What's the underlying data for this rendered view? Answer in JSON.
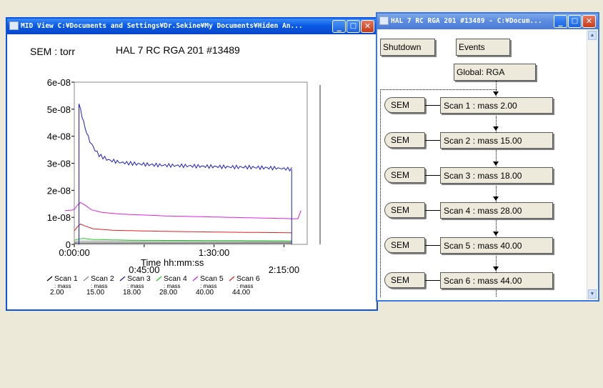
{
  "mid_window": {
    "title": "MID View  C:¥Documents and Settings¥Dr.Sekine¥My Documents¥Hiden An...",
    "controls": {
      "minimize": "_",
      "maximize": "□",
      "close": "✕"
    }
  },
  "flow_window": {
    "title": "HAL 7 RC RGA 201 #13489 - C:¥Docum...",
    "shutdown_label": "Shutdown",
    "events_label": "Events",
    "global_label": "Global: RGA",
    "sem_label": "SEM",
    "scans": [
      "Scan 1 : mass 2.00",
      "Scan 2 : mass 15.00",
      "Scan 3 : mass 18.00",
      "Scan 4 : mass 28.00",
      "Scan 5 : mass 40.00",
      "Scan 6 : mass 44.00"
    ]
  },
  "chart_data": {
    "type": "line",
    "unit_label": "SEM : torr",
    "title": "HAL 7 RC RGA 201 #13489",
    "xlabel": "Time  hh:mm:ss",
    "x_unit": "minutes",
    "xlim": [
      0,
      150
    ],
    "ylim": [
      0,
      6e-08
    ],
    "yticks": [
      {
        "value": 0,
        "label": "0"
      },
      {
        "value": 1e-08,
        "label": "1e-08"
      },
      {
        "value": 2e-08,
        "label": "2e-08"
      },
      {
        "value": 3e-08,
        "label": "3e-08"
      },
      {
        "value": 4e-08,
        "label": "4e-08"
      },
      {
        "value": 5e-08,
        "label": "5e-08"
      },
      {
        "value": 6e-08,
        "label": "6e-08"
      }
    ],
    "xticks": [
      {
        "value": 0,
        "label": "0:00:00",
        "row": 0
      },
      {
        "value": 45,
        "label": "0:45:00",
        "row": 1
      },
      {
        "value": 90,
        "label": "1:30:00",
        "row": 0
      },
      {
        "value": 135,
        "label": "2:15:00",
        "row": 1
      }
    ],
    "series": [
      {
        "name": "Scan 1",
        "mass_label": ": mass",
        "mass": "2.00",
        "color": "#000000",
        "points": [
          [
            0,
            5e-10
          ],
          [
            3,
            5e-10
          ],
          [
            140,
            5e-10
          ]
        ]
      },
      {
        "name": "Scan 2",
        "mass_label": ": mass",
        "mass": "15.00",
        "color": "#888888",
        "points": [
          [
            0,
            1e-09
          ],
          [
            3,
            1.2e-09
          ],
          [
            140,
            1e-09
          ]
        ]
      },
      {
        "name": "Scan 3",
        "mass_label": ": mass",
        "mass": "18.00",
        "color": "#1a1ad8",
        "points": [
          [
            3,
            5.2e-08
          ],
          [
            4,
            5e-08
          ],
          [
            6,
            4.5e-08
          ],
          [
            9,
            3.95e-08
          ],
          [
            12,
            3.6e-08
          ],
          [
            16,
            3.3e-08
          ],
          [
            22,
            3.12e-08
          ],
          [
            30,
            3.03e-08
          ],
          [
            40,
            2.98e-08
          ],
          [
            55,
            2.93e-08
          ],
          [
            75,
            2.9e-08
          ],
          [
            95,
            2.87e-08
          ],
          [
            115,
            2.85e-08
          ],
          [
            130,
            2.82e-08
          ],
          [
            140,
            2.78e-08
          ]
        ]
      },
      {
        "name": "Scan 4",
        "mass_label": ": mass",
        "mass": "28.00",
        "color": "#22cc22",
        "points": [
          [
            0,
            1.5e-09
          ],
          [
            3,
            2e-09
          ],
          [
            6,
            2.2e-09
          ],
          [
            12,
            1.8e-09
          ],
          [
            40,
            1.5e-09
          ],
          [
            140,
            1.3e-09
          ]
        ]
      },
      {
        "name": "Scan 5",
        "mass_label": ": mass",
        "mass": "40.00",
        "color": "#e020e0",
        "points": [
          [
            -6,
            1.25e-08
          ],
          [
            -1,
            1.27e-08
          ],
          [
            0,
            1.3e-08
          ],
          [
            2,
            1.45e-08
          ],
          [
            4,
            1.55e-08
          ],
          [
            7,
            1.45e-08
          ],
          [
            11,
            1.28e-08
          ],
          [
            18,
            1.18e-08
          ],
          [
            30,
            1.12e-08
          ],
          [
            60,
            1.05e-08
          ],
          [
            100,
            1e-08
          ],
          [
            140,
            9.5e-09
          ],
          [
            144,
            9.5e-09
          ],
          [
            146,
            1.25e-08
          ]
        ]
      },
      {
        "name": "Scan 6",
        "mass_label": ": mass",
        "mass": "44.00",
        "color": "#e02020",
        "points": [
          [
            0,
            5e-09
          ],
          [
            2,
            6.5e-09
          ],
          [
            4,
            7.5e-09
          ],
          [
            7,
            6.8e-09
          ],
          [
            12,
            5.8e-09
          ],
          [
            25,
            5.2e-09
          ],
          [
            60,
            4.8e-09
          ],
          [
            100,
            4.5e-09
          ],
          [
            140,
            4.3e-09
          ]
        ]
      }
    ]
  }
}
